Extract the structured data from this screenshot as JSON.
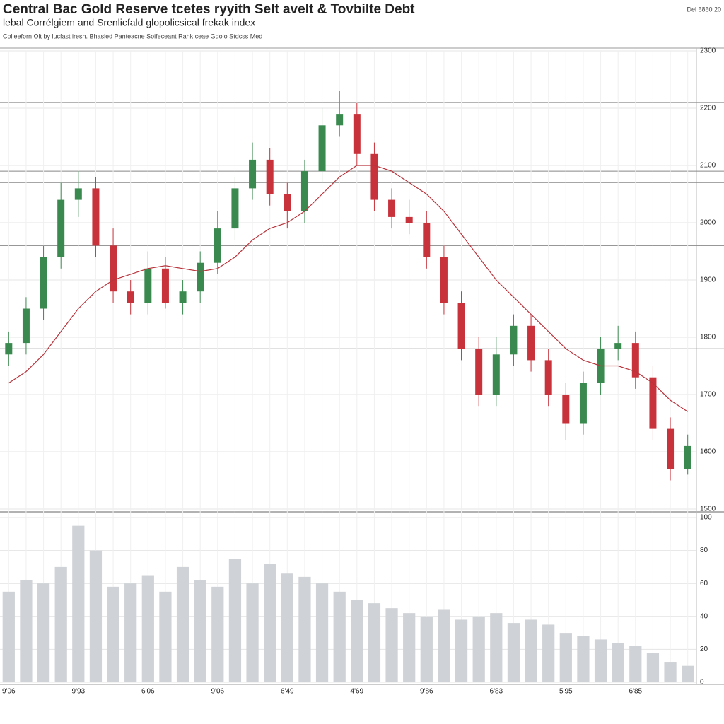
{
  "chart_data": {
    "type": "candlestick",
    "title": "Central Bac Gold Reserve tcetes ryyith Selt avelt & Tovbilte Debt",
    "subtitle": "lebal Corrélgiem and Srenlicfald glopolicsical frekak index",
    "note": "Colleeforn Olt by lucfast iresh. Bhasled Panteacne Soifeceant Rahk ceae Gdolo Stdcss Med",
    "date_label": "Del 6860 20",
    "categories": [
      "9'06",
      null,
      null,
      null,
      "9'93",
      null,
      null,
      null,
      "6'06",
      null,
      null,
      null,
      "9'06",
      null,
      null,
      null,
      "6'49",
      null,
      null,
      null,
      "4'69",
      null,
      null,
      null,
      "9'86",
      null,
      null,
      null,
      "6'83",
      null,
      null,
      null,
      "5'95",
      null,
      null,
      null,
      "6'85",
      null,
      null,
      null
    ],
    "up_color": "#3a8a4f",
    "down_color": "#c8323a",
    "open": [
      1770,
      1790,
      1850,
      1940,
      2040,
      2060,
      1960,
      1880,
      1860,
      1920,
      1860,
      1880,
      1930,
      1990,
      2060,
      2110,
      2050,
      2020,
      2090,
      2170,
      2190,
      2120,
      2040,
      2010,
      2000,
      1940,
      1860,
      1780,
      1700,
      1770,
      1820,
      1760,
      1700,
      1650,
      1720,
      1780,
      1790,
      1730,
      1640,
      1570
    ],
    "high": [
      1810,
      1870,
      1960,
      2070,
      2090,
      2080,
      1990,
      1900,
      1950,
      1940,
      1900,
      1950,
      2020,
      2080,
      2140,
      2130,
      2070,
      2110,
      2200,
      2230,
      2210,
      2140,
      2060,
      2040,
      2020,
      1960,
      1880,
      1800,
      1800,
      1840,
      1840,
      1780,
      1720,
      1740,
      1800,
      1820,
      1810,
      1750,
      1660,
      1630
    ],
    "low": [
      1750,
      1770,
      1830,
      1920,
      2010,
      1940,
      1860,
      1840,
      1840,
      1850,
      1840,
      1860,
      1910,
      1970,
      2040,
      2030,
      1990,
      2000,
      2070,
      2150,
      2100,
      2020,
      1990,
      1980,
      1920,
      1840,
      1760,
      1680,
      1680,
      1750,
      1740,
      1680,
      1620,
      1630,
      1700,
      1760,
      1710,
      1620,
      1550,
      1560
    ],
    "close": [
      1790,
      1850,
      1940,
      2040,
      2060,
      1960,
      1880,
      1860,
      1920,
      1860,
      1880,
      1930,
      1990,
      2060,
      2110,
      2050,
      2020,
      2090,
      2170,
      2190,
      2120,
      2040,
      2010,
      2000,
      1940,
      1860,
      1780,
      1700,
      1770,
      1820,
      1760,
      1700,
      1650,
      1720,
      1780,
      1790,
      1730,
      1640,
      1570,
      1610
    ],
    "moving_average": {
      "color": "#b8343c",
      "values": [
        1720,
        1740,
        1770,
        1810,
        1850,
        1880,
        1900,
        1910,
        1920,
        1925,
        1920,
        1915,
        1920,
        1940,
        1970,
        1990,
        2000,
        2020,
        2050,
        2080,
        2100,
        2100,
        2090,
        2070,
        2050,
        2020,
        1980,
        1940,
        1900,
        1870,
        1840,
        1810,
        1780,
        1760,
        1750,
        1750,
        1740,
        1720,
        1690,
        1670
      ]
    },
    "levels": [
      2210,
      2090,
      2070,
      2050,
      1960,
      1780
    ],
    "ylim": [
      1500,
      2300
    ],
    "yticks": [
      1500,
      1600,
      1700,
      1800,
      1900,
      2000,
      2100,
      2200,
      2300
    ],
    "volume": {
      "color": "#cfd2d6",
      "values": [
        55,
        62,
        60,
        70,
        95,
        80,
        58,
        60,
        65,
        55,
        70,
        62,
        58,
        75,
        60,
        72,
        66,
        64,
        60,
        55,
        50,
        48,
        45,
        42,
        40,
        44,
        38,
        40,
        42,
        36,
        38,
        35,
        30,
        28,
        26,
        24,
        22,
        18,
        12,
        10
      ],
      "ylim": [
        0,
        100
      ],
      "yticks": [
        0,
        20,
        40,
        60,
        80,
        100
      ]
    },
    "grid": true
  }
}
